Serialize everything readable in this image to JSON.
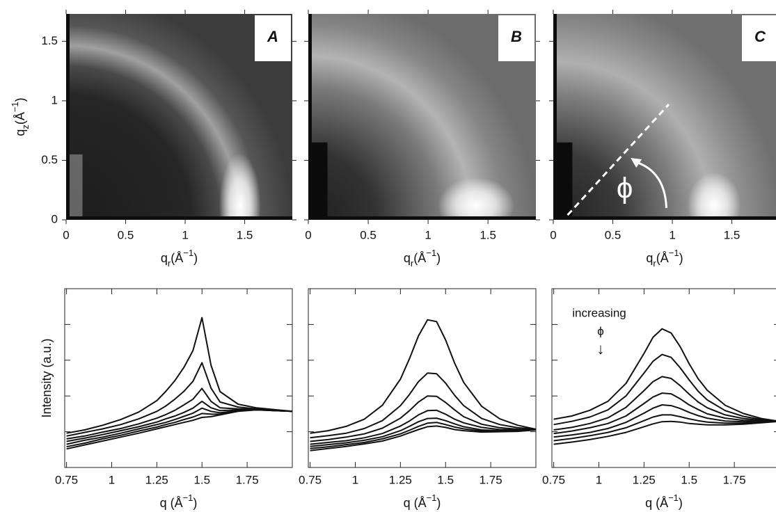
{
  "chart_data": [
    {
      "type": "image",
      "panel_label": "A",
      "xlim": [
        0,
        1.9
      ],
      "ylim": [
        0,
        1.73
      ],
      "xticks": [
        0,
        0.5,
        1,
        1.5
      ],
      "yticks": [
        0,
        0.5,
        1,
        1.5
      ],
      "ytick_labels": true,
      "xlabel": {
        "base": "q",
        "sub": "r",
        "unit": "(Å",
        "sup": "−1",
        "end": ")"
      },
      "ylabel": {
        "base": "q",
        "sub": "z",
        "unit": "(Å",
        "sup": "−1",
        "end": ")"
      }
    },
    {
      "type": "image",
      "panel_label": "B",
      "xlim": [
        0,
        1.9
      ],
      "ylim": [
        0,
        1.73
      ],
      "xticks": [
        0,
        0.5,
        1,
        1.5
      ],
      "yticks": [
        0,
        0.5,
        1,
        1.5
      ],
      "ytick_labels": false,
      "xlabel": {
        "base": "q",
        "sub": "r",
        "unit": "(Å",
        "sup": "−1",
        "end": ")"
      }
    },
    {
      "type": "image",
      "panel_label": "C",
      "xlim": [
        0,
        1.9
      ],
      "ylim": [
        0,
        1.73
      ],
      "xticks": [
        0,
        0.5,
        1,
        1.5
      ],
      "yticks": [
        0,
        0.5,
        1,
        1.5
      ],
      "ytick_labels": false,
      "xlabel": {
        "base": "q",
        "sub": "r",
        "unit": "(Å",
        "sup": "−1",
        "end": ")"
      },
      "annotation": "ϕ"
    },
    {
      "type": "line",
      "xlim": [
        0.74,
        2.0
      ],
      "ylim": [
        0,
        5
      ],
      "xticks": [
        0.75,
        1,
        1.25,
        1.5,
        1.75
      ],
      "yticks": [
        1,
        2,
        3,
        4
      ],
      "ytick_labels": false,
      "xlabel": {
        "base": "q",
        "unit": " (Å",
        "sup": "−1",
        "end": ")"
      },
      "ylabel": {
        "base": "Intensity (a.u.)"
      },
      "x": [
        0.75,
        0.85,
        0.95,
        1.05,
        1.15,
        1.25,
        1.3,
        1.35,
        1.4,
        1.45,
        1.5,
        1.55,
        1.6,
        1.7,
        1.8,
        1.9,
        2.0
      ],
      "series": [
        {
          "color": "#111111",
          "values": [
            0.96,
            1.05,
            1.18,
            1.34,
            1.55,
            1.87,
            2.13,
            2.43,
            2.8,
            3.27,
            4.19,
            2.86,
            2.12,
            1.77,
            1.67,
            1.62,
            1.57
          ]
        },
        {
          "color": "#111111",
          "values": [
            0.88,
            0.98,
            1.08,
            1.2,
            1.36,
            1.57,
            1.72,
            1.91,
            2.13,
            2.41,
            2.93,
            2.22,
            1.83,
            1.69,
            1.64,
            1.61,
            1.57
          ]
        },
        {
          "color": "#111111",
          "values": [
            0.8,
            0.88,
            0.99,
            1.09,
            1.22,
            1.38,
            1.48,
            1.6,
            1.75,
            1.91,
            2.21,
            1.85,
            1.67,
            1.64,
            1.63,
            1.6,
            1.57
          ]
        },
        {
          "color": "#111111",
          "values": [
            0.73,
            0.82,
            0.92,
            1.03,
            1.14,
            1.27,
            1.36,
            1.44,
            1.54,
            1.66,
            1.85,
            1.67,
            1.59,
            1.61,
            1.62,
            1.59,
            1.57
          ]
        },
        {
          "color": "#111111",
          "values": [
            0.65,
            0.76,
            0.85,
            0.96,
            1.08,
            1.2,
            1.26,
            1.34,
            1.43,
            1.52,
            1.66,
            1.57,
            1.53,
            1.59,
            1.62,
            1.59,
            1.57
          ]
        },
        {
          "color": "#111111",
          "values": [
            0.58,
            0.68,
            0.8,
            0.9,
            1.02,
            1.13,
            1.2,
            1.26,
            1.34,
            1.41,
            1.51,
            1.49,
            1.49,
            1.58,
            1.61,
            1.59,
            1.57
          ]
        },
        {
          "color": "#111111",
          "values": [
            0.52,
            0.63,
            0.74,
            0.85,
            0.96,
            1.08,
            1.14,
            1.2,
            1.26,
            1.32,
            1.4,
            1.42,
            1.47,
            1.57,
            1.61,
            1.59,
            1.57
          ]
        }
      ]
    },
    {
      "type": "line",
      "xlim": [
        0.74,
        2.0
      ],
      "ylim": [
        0,
        5
      ],
      "xticks": [
        0.75,
        1,
        1.25,
        1.5,
        1.75
      ],
      "yticks": [
        1,
        2,
        3,
        4
      ],
      "ytick_labels": false,
      "xlabel": {
        "base": "q",
        "unit": " (Å",
        "sup": "−1",
        "end": ")"
      },
      "x": [
        0.75,
        0.85,
        0.95,
        1.05,
        1.15,
        1.25,
        1.3,
        1.35,
        1.4,
        1.45,
        1.5,
        1.55,
        1.6,
        1.7,
        1.8,
        1.9,
        2.0
      ],
      "series": [
        {
          "color": "#111111",
          "values": [
            0.96,
            1.03,
            1.15,
            1.35,
            1.74,
            2.47,
            3.04,
            3.68,
            4.13,
            4.08,
            3.57,
            2.92,
            2.38,
            1.71,
            1.36,
            1.18,
            1.07
          ]
        },
        {
          "color": "#111111",
          "values": [
            0.83,
            0.89,
            0.96,
            1.09,
            1.31,
            1.73,
            2.04,
            2.4,
            2.64,
            2.62,
            2.36,
            2.02,
            1.73,
            1.37,
            1.2,
            1.11,
            1.07
          ]
        },
        {
          "color": "#111111",
          "values": [
            0.73,
            0.78,
            0.85,
            0.94,
            1.1,
            1.38,
            1.59,
            1.83,
            2.0,
            1.99,
            1.82,
            1.61,
            1.42,
            1.21,
            1.11,
            1.07,
            1.05
          ]
        },
        {
          "color": "#111111",
          "values": [
            0.65,
            0.7,
            0.75,
            0.83,
            0.95,
            1.16,
            1.3,
            1.47,
            1.59,
            1.6,
            1.49,
            1.35,
            1.25,
            1.12,
            1.06,
            1.05,
            1.05
          ]
        },
        {
          "color": "#111111",
          "values": [
            0.59,
            0.64,
            0.69,
            0.76,
            0.86,
            1.03,
            1.15,
            1.28,
            1.37,
            1.38,
            1.31,
            1.22,
            1.14,
            1.05,
            1.03,
            1.03,
            1.05
          ]
        },
        {
          "color": "#111111",
          "values": [
            0.53,
            0.58,
            0.64,
            0.7,
            0.8,
            0.94,
            1.04,
            1.15,
            1.24,
            1.26,
            1.2,
            1.13,
            1.08,
            1.02,
            1.01,
            1.02,
            1.05
          ]
        },
        {
          "color": "#111111",
          "values": [
            0.47,
            0.53,
            0.59,
            0.66,
            0.74,
            0.88,
            0.97,
            1.06,
            1.14,
            1.16,
            1.12,
            1.06,
            1.03,
            0.99,
            1.0,
            1.01,
            1.05
          ]
        }
      ]
    },
    {
      "type": "line",
      "xlim": [
        0.74,
        2.0
      ],
      "ylim": [
        0,
        5
      ],
      "xticks": [
        0.75,
        1,
        1.25,
        1.5,
        1.75
      ],
      "yticks": [
        1,
        2,
        3,
        4
      ],
      "ytick_labels": false,
      "xlabel": {
        "base": "q",
        "unit": " (Å",
        "sup": "−1",
        "end": ")"
      },
      "annotations": [
        "increasing",
        "ϕ",
        "↓"
      ],
      "x": [
        0.75,
        0.85,
        0.95,
        1.05,
        1.15,
        1.25,
        1.3,
        1.35,
        1.4,
        1.45,
        1.5,
        1.55,
        1.6,
        1.7,
        1.8,
        1.9,
        2.0
      ],
      "series": [
        {
          "color": "#111111",
          "values": [
            1.35,
            1.44,
            1.6,
            1.85,
            2.35,
            3.19,
            3.64,
            3.88,
            3.76,
            3.38,
            2.9,
            2.48,
            2.16,
            1.74,
            1.51,
            1.37,
            1.29
          ]
        },
        {
          "color": "#111111",
          "values": [
            1.2,
            1.29,
            1.41,
            1.61,
            2.0,
            2.64,
            2.97,
            3.16,
            3.08,
            2.79,
            2.45,
            2.13,
            1.89,
            1.59,
            1.43,
            1.34,
            1.29
          ]
        },
        {
          "color": "#111111",
          "values": [
            1.05,
            1.12,
            1.23,
            1.39,
            1.68,
            2.15,
            2.4,
            2.54,
            2.49,
            2.29,
            2.05,
            1.83,
            1.67,
            1.47,
            1.37,
            1.32,
            1.29
          ]
        },
        {
          "color": "#111111",
          "values": [
            0.95,
            1.02,
            1.11,
            1.23,
            1.44,
            1.79,
            1.97,
            2.08,
            2.06,
            1.92,
            1.75,
            1.62,
            1.5,
            1.38,
            1.32,
            1.3,
            1.3
          ]
        },
        {
          "color": "#111111",
          "values": [
            0.85,
            0.91,
            0.98,
            1.09,
            1.26,
            1.52,
            1.66,
            1.75,
            1.73,
            1.65,
            1.54,
            1.45,
            1.38,
            1.3,
            1.28,
            1.27,
            1.29
          ]
        },
        {
          "color": "#111111",
          "values": [
            0.75,
            0.81,
            0.89,
            0.98,
            1.11,
            1.31,
            1.41,
            1.47,
            1.47,
            1.42,
            1.36,
            1.31,
            1.27,
            1.24,
            1.24,
            1.27,
            1.29
          ]
        },
        {
          "color": "#111111",
          "values": [
            0.65,
            0.71,
            0.78,
            0.87,
            0.98,
            1.14,
            1.22,
            1.28,
            1.29,
            1.27,
            1.23,
            1.21,
            1.19,
            1.19,
            1.21,
            1.25,
            1.29
          ]
        }
      ]
    }
  ]
}
